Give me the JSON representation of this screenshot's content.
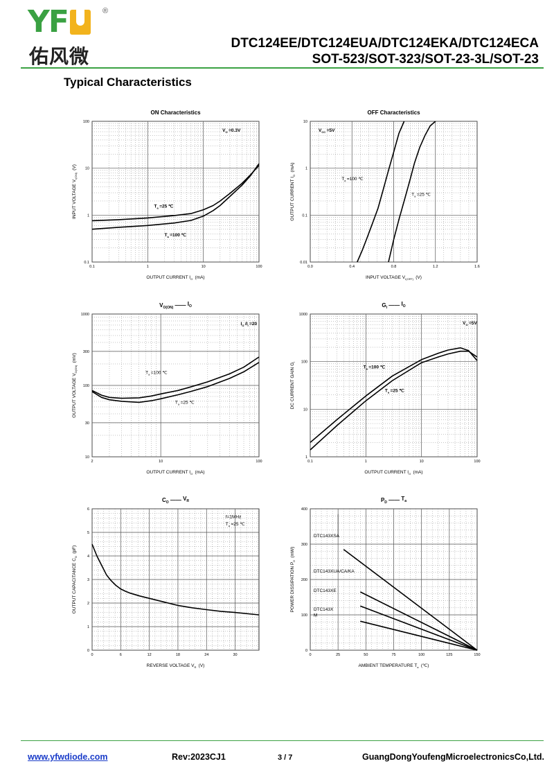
{
  "header": {
    "logo_letters": "YFW",
    "logo_chinese": "佑风微",
    "registered_mark": "®",
    "part_numbers": "DTC124EE/DTC124EUA/DTC124EKA/DTC124ECA",
    "packages": "SOT-523/SOT-323/SOT-23-3L/SOT-23",
    "section_title": "Typical Characteristics"
  },
  "footer": {
    "website": "www.yfwdiode.com",
    "revision": "Rev:2023CJ1",
    "page": "3 / 7",
    "company": "GuangDongYoufengMicroelectronicsCo,Ltd."
  },
  "colors": {
    "brand_green": "#3aa142",
    "brand_yellow": "#f2b31d",
    "link_blue": "#1a3cc9",
    "curve": "#000000"
  },
  "chart_data": [
    {
      "type": "line",
      "title": "ON Characteristics",
      "xlabel_parts": [
        "OUTPUT CURRENT",
        "I",
        "O",
        "(mA)"
      ],
      "ylabel_parts": [
        "INPUT VOLTAGE",
        "V",
        "I(ON)",
        "(V)"
      ],
      "x_scale": "log",
      "y_scale": "log",
      "xlim": [
        0.1,
        100
      ],
      "ylim": [
        0.1,
        100
      ],
      "x_ticks": [
        {
          "v": 0.1,
          "t": "0.1"
        },
        {
          "v": 1,
          "t": "1"
        },
        {
          "v": 10,
          "t": "10"
        },
        {
          "v": 100,
          "t": "100"
        }
      ],
      "y_ticks": [
        {
          "v": 0.1,
          "t": "0.1"
        },
        {
          "v": 1,
          "t": "1"
        },
        {
          "v": 10,
          "t": "10"
        },
        {
          "v": 100,
          "t": "100"
        }
      ],
      "annotations": [
        {
          "parts": [
            "V",
            "O",
            "=0.3V"
          ],
          "x": 22,
          "y": 60,
          "bold": true
        },
        {
          "parts": [
            "T",
            "a",
            "=25 ℃"
          ],
          "x": 1.3,
          "y": 1.45,
          "bold": true
        },
        {
          "parts": [
            "T",
            "a",
            "=100 ℃"
          ],
          "x": 2.0,
          "y": 0.35,
          "bold": true
        }
      ],
      "series": [
        {
          "label": "Ta=25 ℃",
          "x": [
            0.1,
            0.3,
            1,
            3,
            6,
            10,
            15,
            20,
            30,
            50,
            70,
            100
          ],
          "y": [
            0.76,
            0.8,
            0.87,
            0.98,
            1.08,
            1.3,
            1.6,
            2.0,
            2.9,
            4.8,
            7.2,
            11.5
          ]
        },
        {
          "label": "Ta=100 ℃",
          "x": [
            0.1,
            0.3,
            1,
            3,
            6,
            10,
            15,
            20,
            30,
            50,
            70,
            100
          ],
          "y": [
            0.5,
            0.55,
            0.6,
            0.68,
            0.77,
            0.95,
            1.25,
            1.6,
            2.5,
            4.4,
            6.9,
            12.5
          ]
        }
      ]
    },
    {
      "type": "line",
      "title": "OFF Characteristics",
      "xlabel_parts": [
        "INPUT VOLTAGE",
        "V",
        "I(OFF)",
        "(V)"
      ],
      "ylabel_parts": [
        "OUTPUT CURRENT",
        "I",
        "O",
        "(mA)"
      ],
      "x_scale": "linear",
      "y_scale": "log",
      "xlim": [
        0.0,
        1.6
      ],
      "ylim": [
        0.01,
        10
      ],
      "x_ticks": [
        {
          "v": 0,
          "t": "0.0"
        },
        {
          "v": 0.4,
          "t": "0.4"
        },
        {
          "v": 0.8,
          "t": "0.8"
        },
        {
          "v": 1.2,
          "t": "1.2"
        },
        {
          "v": 1.6,
          "t": "1.6"
        }
      ],
      "y_ticks": [
        {
          "v": 0.01,
          "t": "0.01"
        },
        {
          "v": 0.1,
          "t": "0.1"
        },
        {
          "v": 1,
          "t": "1"
        },
        {
          "v": 10,
          "t": "10"
        }
      ],
      "annotations": [
        {
          "parts": [
            "V",
            "CC",
            "=5V"
          ],
          "x": 0.08,
          "y": 6,
          "bold": true
        },
        {
          "parts": [
            "T",
            "a",
            "=100 ℃"
          ],
          "x": 0.3,
          "y": 0.55,
          "bold": false
        },
        {
          "parts": [
            "T",
            "a",
            "=25 ℃"
          ],
          "x": 0.97,
          "y": 0.26,
          "bold": false
        }
      ],
      "series": [
        {
          "label": "Ta=100 ℃",
          "x": [
            0.45,
            0.5,
            0.55,
            0.6,
            0.65,
            0.7,
            0.75,
            0.8,
            0.85,
            0.9
          ],
          "y": [
            0.01,
            0.018,
            0.035,
            0.07,
            0.14,
            0.35,
            0.9,
            2.2,
            5.5,
            10
          ]
        },
        {
          "label": "Ta=25 ℃",
          "x": [
            0.75,
            0.8,
            0.85,
            0.9,
            0.95,
            1.0,
            1.05,
            1.1,
            1.15,
            1.2
          ],
          "y": [
            0.01,
            0.03,
            0.08,
            0.2,
            0.5,
            1.3,
            2.8,
            5.0,
            8.0,
            10
          ]
        }
      ]
    },
    {
      "type": "line",
      "title_parts": [
        "V",
        "O(ON)",
        "——",
        "I",
        "O"
      ],
      "xlabel_parts": [
        "OUTPUT CURRENT",
        "I",
        "O",
        "(mA)"
      ],
      "ylabel_parts": [
        "OUTPUT VOLTAGE",
        "V",
        "O(ON)",
        "(mV)"
      ],
      "x_scale": "log",
      "y_scale": "log",
      "xlim": [
        2,
        100
      ],
      "ylim": [
        10,
        1000
      ],
      "x_ticks": [
        {
          "v": 2,
          "t": "2"
        },
        {
          "v": 10,
          "t": "10"
        },
        {
          "v": 100,
          "t": "100"
        }
      ],
      "y_ticks": [
        {
          "v": 10,
          "t": "10"
        },
        {
          "v": 30,
          "t": "30"
        },
        {
          "v": 100,
          "t": "100"
        },
        {
          "v": 300,
          "t": "300"
        },
        {
          "v": 1000,
          "t": "1000"
        }
      ],
      "annotations": [
        {
          "parts": [
            "I",
            "O",
            "/I",
            "I",
            "=20"
          ],
          "x": 65,
          "y": 700,
          "bold": true
        },
        {
          "parts": [
            "T",
            "a",
            "=100 ℃"
          ],
          "x": 7,
          "y": 145,
          "bold": false
        },
        {
          "parts": [
            "T",
            "a",
            "=25 ℃"
          ],
          "x": 14,
          "y": 55,
          "bold": false
        }
      ],
      "series": [
        {
          "label": "Ta=100 ℃",
          "x": [
            2,
            2.5,
            3,
            4,
            6,
            8,
            10,
            15,
            20,
            30,
            50,
            70,
            100
          ],
          "y": [
            85,
            73,
            68,
            66,
            67,
            71,
            76,
            85,
            95,
            112,
            145,
            180,
            250
          ]
        },
        {
          "label": "Ta=25 ℃",
          "x": [
            2,
            2.5,
            3,
            4,
            6,
            8,
            10,
            15,
            20,
            30,
            50,
            70,
            100
          ],
          "y": [
            82,
            68,
            63,
            60,
            58,
            61,
            65,
            74,
            82,
            96,
            125,
            155,
            210
          ]
        }
      ]
    },
    {
      "type": "line",
      "title_parts": [
        "G",
        "I",
        "——",
        "I",
        "O"
      ],
      "xlabel_parts": [
        "OUTPUT CURRENT",
        "I",
        "O",
        "(mA)"
      ],
      "ylabel_parts": [
        "DC CURRENT GAIN",
        "G",
        "I",
        ""
      ],
      "x_scale": "log",
      "y_scale": "log",
      "xlim": [
        0.1,
        100
      ],
      "ylim": [
        1,
        1000
      ],
      "x_ticks": [
        {
          "v": 0.1,
          "t": "0.1"
        },
        {
          "v": 1,
          "t": "1"
        },
        {
          "v": 10,
          "t": "10"
        },
        {
          "v": 100,
          "t": "100"
        }
      ],
      "y_ticks": [
        {
          "v": 1,
          "t": "1"
        },
        {
          "v": 10,
          "t": "10"
        },
        {
          "v": 100,
          "t": "100"
        },
        {
          "v": 1000,
          "t": "1000"
        }
      ],
      "annotations": [
        {
          "parts": [
            "V",
            "O",
            "=5V"
          ],
          "x": 55,
          "y": 600,
          "bold": true
        },
        {
          "parts": [
            "T",
            "a",
            "=100 ℃"
          ],
          "x": 0.9,
          "y": 72,
          "bold": true
        },
        {
          "parts": [
            "T",
            "a",
            "=25 ℃"
          ],
          "x": 2.2,
          "y": 23,
          "bold": true
        }
      ],
      "series": [
        {
          "label": "Ta=100 ℃",
          "x": [
            0.1,
            0.3,
            1,
            3,
            10,
            20,
            30,
            50,
            70,
            100
          ],
          "y": [
            2.0,
            6,
            19,
            50,
            110,
            150,
            175,
            195,
            170,
            105
          ]
        },
        {
          "label": "Ta=25 ℃",
          "x": [
            0.1,
            0.3,
            1,
            3,
            10,
            20,
            30,
            50,
            70,
            100
          ],
          "y": [
            1.4,
            4.5,
            15,
            40,
            95,
            125,
            145,
            165,
            165,
            125
          ]
        }
      ]
    },
    {
      "type": "line",
      "title_parts": [
        "C",
        "O",
        "——",
        "V",
        "R"
      ],
      "xlabel_parts": [
        "REVERSE VOLTAGE",
        "V",
        "R",
        "(V)"
      ],
      "ylabel_parts": [
        "OUTPUT CAPACITANCE",
        "C",
        "O",
        "(pF)"
      ],
      "x_scale": "linear",
      "y_scale": "linear",
      "xlim": [
        0,
        35
      ],
      "ylim": [
        0,
        6
      ],
      "x_ticks": [
        {
          "v": 0,
          "t": "0"
        },
        {
          "v": 6,
          "t": "6"
        },
        {
          "v": 12,
          "t": "12"
        },
        {
          "v": 18,
          "t": "18"
        },
        {
          "v": 24,
          "t": "24"
        },
        {
          "v": 30,
          "t": "30"
        }
      ],
      "y_ticks": [
        {
          "v": 0,
          "t": "0"
        },
        {
          "v": 1,
          "t": "1"
        },
        {
          "v": 2,
          "t": "2"
        },
        {
          "v": 3,
          "t": "3"
        },
        {
          "v": 4,
          "t": "4"
        },
        {
          "v": 5,
          "t": "5"
        },
        {
          "v": 6,
          "t": "6"
        }
      ],
      "annotations": [
        {
          "parts": [
            "f=1MHz"
          ],
          "x": 28,
          "y": 5.6,
          "bold": false
        },
        {
          "parts": [
            "T",
            "a",
            "=25 ℃"
          ],
          "x": 28,
          "y": 5.3,
          "bold": false
        }
      ],
      "series": [
        {
          "label": "Ta=25 ℃",
          "x": [
            0,
            1,
            2,
            3,
            4,
            5,
            6,
            7,
            8,
            10,
            12,
            15,
            18,
            21,
            24,
            27,
            30,
            35
          ],
          "y": [
            4.5,
            4.0,
            3.6,
            3.2,
            2.95,
            2.75,
            2.6,
            2.5,
            2.42,
            2.3,
            2.2,
            2.05,
            1.9,
            1.8,
            1.72,
            1.65,
            1.6,
            1.5
          ]
        }
      ]
    },
    {
      "type": "line",
      "title_parts": [
        "P",
        "D",
        "——",
        "T",
        "a"
      ],
      "xlabel_parts": [
        "AMBIENT TEMPERATURE",
        "T",
        "a",
        "(℃)"
      ],
      "ylabel_parts": [
        "POWER DISSIPATION",
        "P",
        "D",
        "(mW)"
      ],
      "x_scale": "linear",
      "y_scale": "linear",
      "xlim": [
        0,
        150
      ],
      "ylim": [
        0,
        400
      ],
      "x_ticks": [
        {
          "v": 0,
          "t": "0"
        },
        {
          "v": 25,
          "t": "25"
        },
        {
          "v": 50,
          "t": "50"
        },
        {
          "v": 75,
          "t": "75"
        },
        {
          "v": 100,
          "t": "100"
        },
        {
          "v": 125,
          "t": "125"
        },
        {
          "v": 150,
          "t": "150"
        }
      ],
      "y_ticks": [
        {
          "v": 0,
          "t": "0"
        },
        {
          "v": 100,
          "t": "100"
        },
        {
          "v": 200,
          "t": "200"
        },
        {
          "v": 300,
          "t": "300"
        },
        {
          "v": 400,
          "t": "400"
        }
      ],
      "annotations": [
        {
          "parts": [
            "DTC143XSA"
          ],
          "x": 3,
          "y": 320,
          "bold": false
        },
        {
          "parts": [
            "DTC143XUA/CA/KA"
          ],
          "x": 3,
          "y": 220,
          "bold": false
        },
        {
          "parts": [
            "DTC143XE"
          ],
          "x": 3,
          "y": 165,
          "bold": false
        },
        {
          "parts": [
            "DTC143X"
          ],
          "x": 3,
          "y": 112,
          "bold": false
        },
        {
          "parts": [
            "M"
          ],
          "x": 3,
          "y": 95,
          "bold": false
        }
      ],
      "series": [
        {
          "label": "DTC143XSA",
          "x": [
            30,
            150
          ],
          "y": [
            285,
            0
          ]
        },
        {
          "label": "DTC143XUA/CA/KA",
          "x": [
            45,
            150
          ],
          "y": [
            165,
            0
          ]
        },
        {
          "label": "DTC143XE",
          "x": [
            45,
            150
          ],
          "y": [
            125,
            0
          ]
        },
        {
          "label": "DTC143XM",
          "x": [
            45,
            150
          ],
          "y": [
            82,
            0
          ]
        }
      ]
    }
  ]
}
